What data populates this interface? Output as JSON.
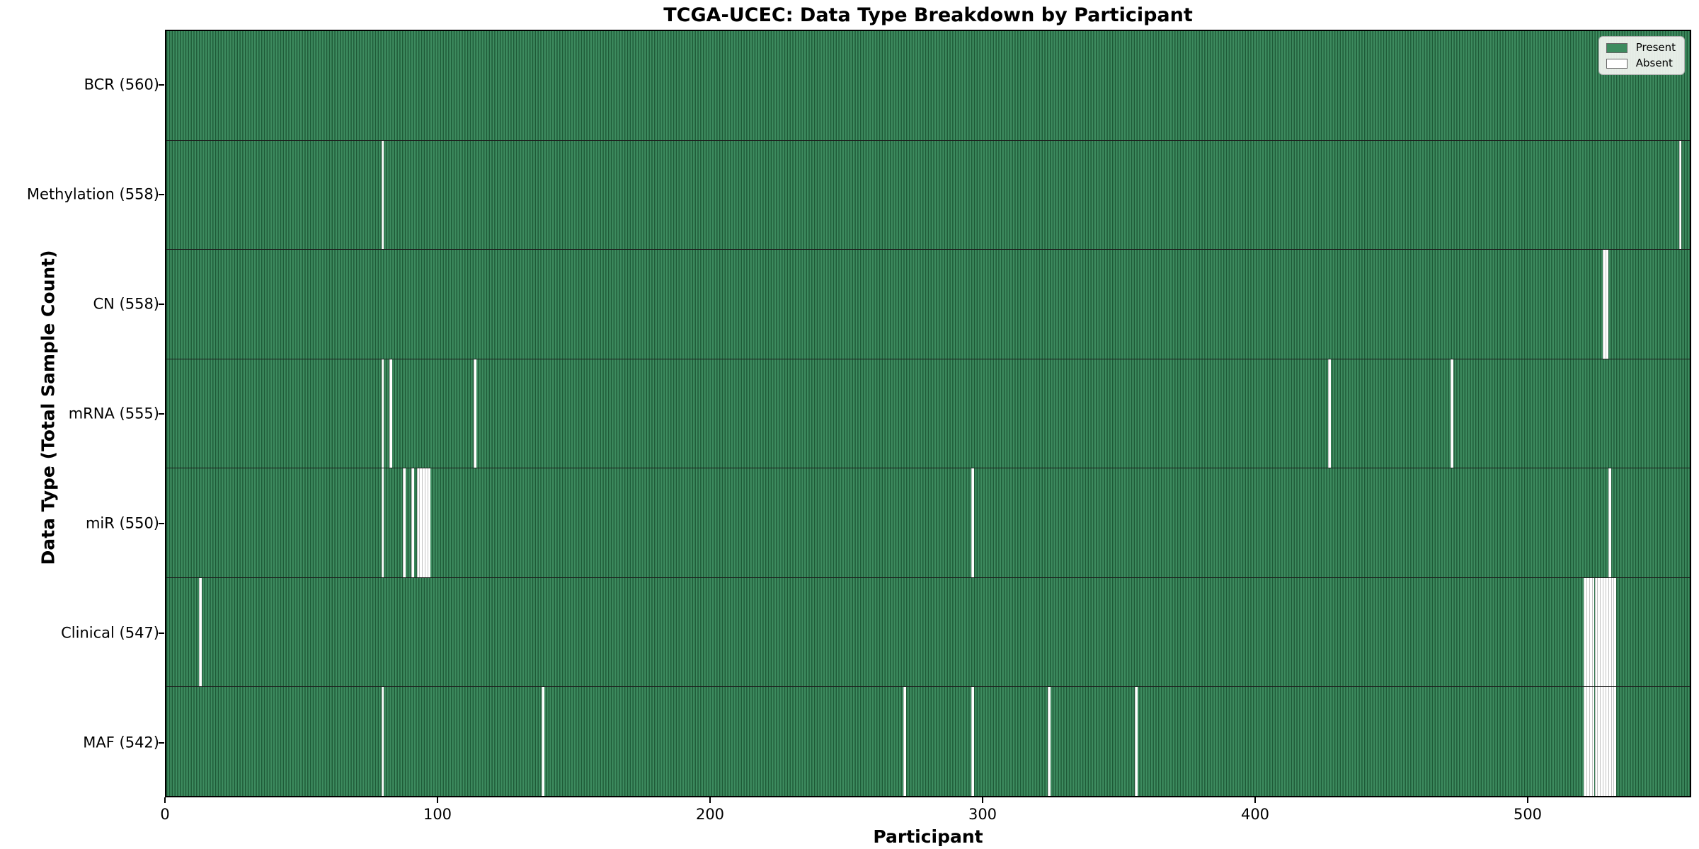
{
  "chart_data": {
    "type": "heatmap",
    "title": "TCGA-UCEC: Data Type Breakdown by Participant",
    "xlabel": "Participant",
    "ylabel": "Data Type (Total Sample Count)",
    "x_ticks": [
      0,
      100,
      200,
      300,
      400,
      500
    ],
    "x_range": [
      0,
      560
    ],
    "n_participants": 560,
    "grid": false,
    "legend": {
      "position": "upper right",
      "entries": [
        {
          "label": "Present",
          "color": "#3d8b5f"
        },
        {
          "label": "Absent",
          "color": "#ffffff"
        }
      ]
    },
    "rows": [
      {
        "name": "BCR",
        "label": "BCR (560)",
        "count": 560,
        "absent": []
      },
      {
        "name": "Methylation",
        "label": "Methylation (558)",
        "count": 558,
        "absent": [
          79,
          556
        ]
      },
      {
        "name": "CN",
        "label": "CN (558)",
        "count": 558,
        "absent": [
          528,
          529
        ]
      },
      {
        "name": "mRNA",
        "label": "mRNA (555)",
        "count": 555,
        "absent": [
          79,
          82,
          113,
          427,
          472
        ]
      },
      {
        "name": "miR",
        "label": "miR (550)",
        "count": 550,
        "absent": [
          79,
          87,
          90,
          92,
          93,
          94,
          95,
          96,
          296,
          530
        ]
      },
      {
        "name": "Clinical",
        "label": "Clinical (547)",
        "count": 547,
        "absent": [
          12,
          521,
          522,
          523,
          524,
          525,
          526,
          527,
          528,
          529,
          530,
          531,
          532
        ]
      },
      {
        "name": "MAF",
        "label": "MAF (542)",
        "count": 542,
        "absent": [
          79,
          138,
          271,
          296,
          324,
          356,
          521,
          522,
          523,
          524,
          525,
          526,
          527,
          528,
          529,
          530,
          531,
          532
        ]
      }
    ],
    "colors": {
      "present_fill": "#3d8b5f",
      "present_edge": "#1e5a37",
      "absent": "#ffffff",
      "row_separator": "#1c1c1c",
      "plot_border": "#000000"
    }
  }
}
